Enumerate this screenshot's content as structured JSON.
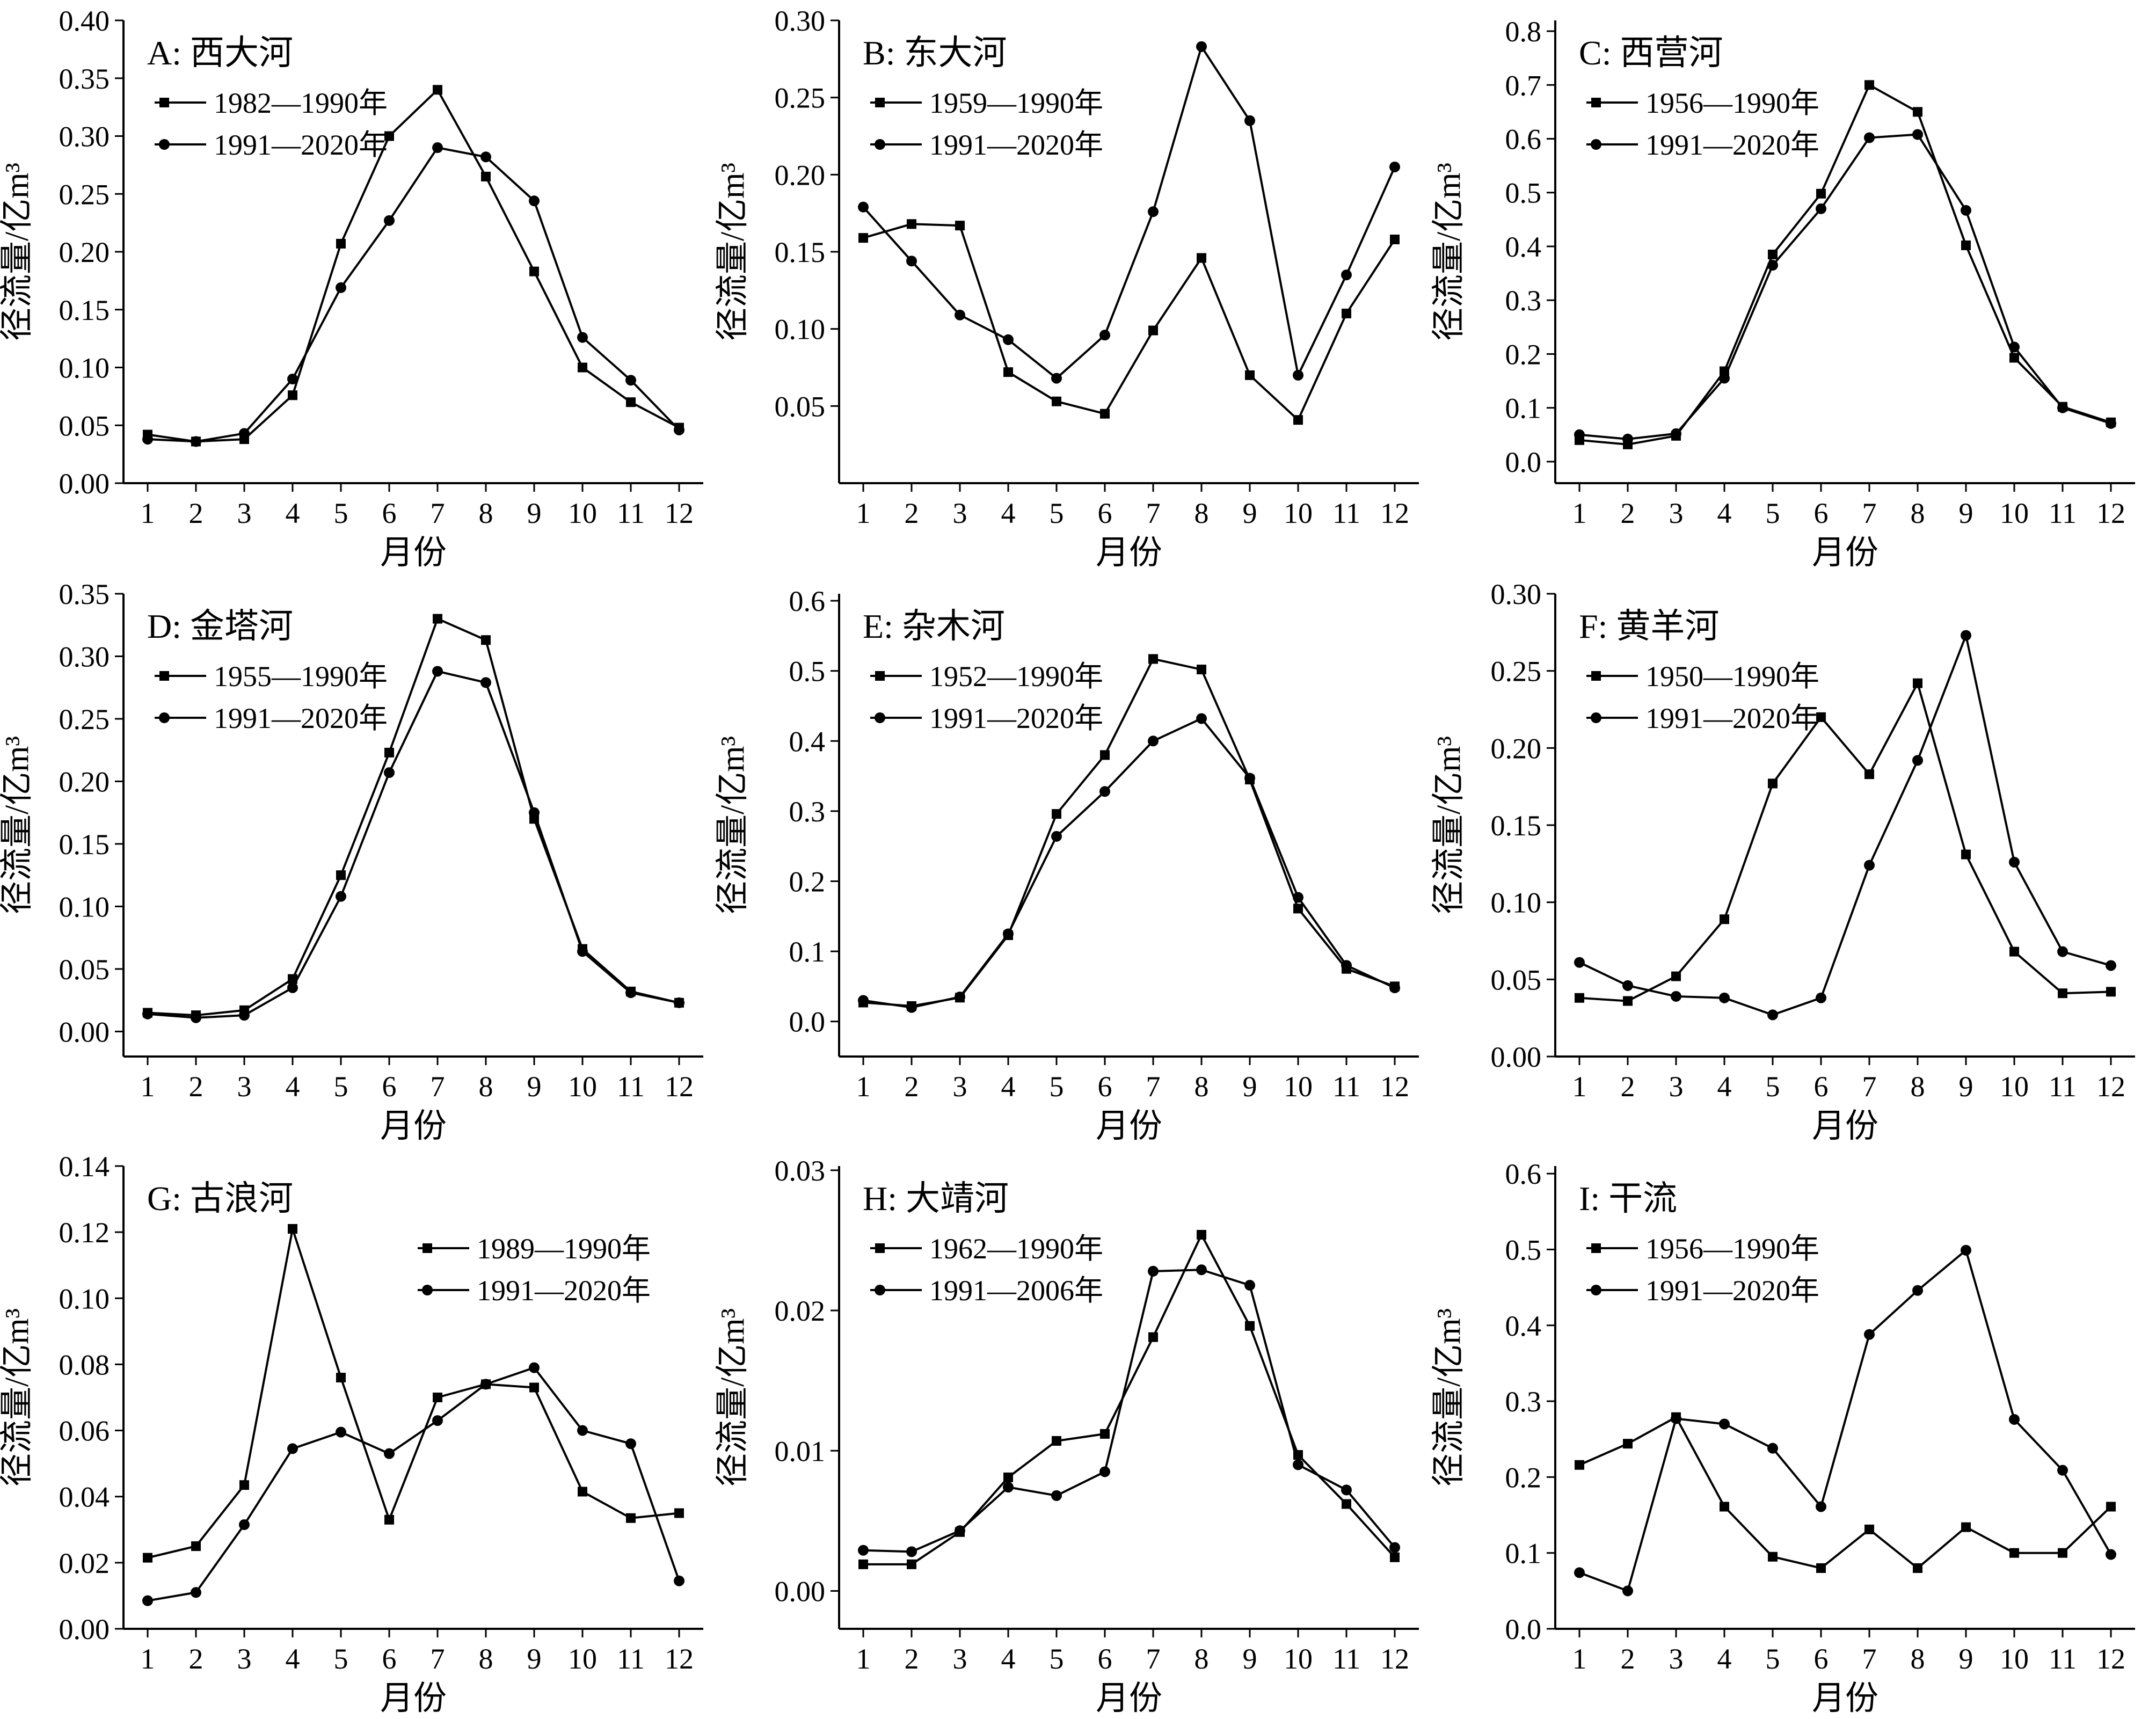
{
  "common": {
    "xlabel": "月份",
    "ylabel": "径流量/亿m³",
    "categories": [
      "1",
      "2",
      "3",
      "4",
      "5",
      "6",
      "7",
      "8",
      "9",
      "10",
      "11",
      "12"
    ],
    "line_color": "#000000"
  },
  "chart_data": [
    {
      "type": "line",
      "title": "A: 西大河",
      "xlabel": "月份",
      "ylabel": "径流量/亿m³",
      "categories": [
        "1",
        "2",
        "3",
        "4",
        "5",
        "6",
        "7",
        "8",
        "9",
        "10",
        "11",
        "12"
      ],
      "ylim": [
        0,
        0.4
      ],
      "yticks": [
        "0.00",
        "0.05",
        "0.10",
        "0.15",
        "0.20",
        "0.25",
        "0.30",
        "0.35",
        "0.40"
      ],
      "legend": "top-left",
      "series": [
        {
          "name": "1982—1990年",
          "marker": "square",
          "values": [
            0.042,
            0.036,
            0.038,
            0.076,
            0.207,
            0.3,
            0.34,
            0.265,
            0.183,
            0.1,
            0.07,
            0.048
          ]
        },
        {
          "name": "1991—2020年",
          "marker": "circle",
          "values": [
            0.038,
            0.036,
            0.043,
            0.09,
            0.169,
            0.227,
            0.29,
            0.282,
            0.244,
            0.126,
            0.089,
            0.046
          ]
        }
      ]
    },
    {
      "type": "line",
      "title": "B: 东大河",
      "xlabel": "月份",
      "ylabel": "径流量/亿m³",
      "categories": [
        "1",
        "2",
        "3",
        "4",
        "5",
        "6",
        "7",
        "8",
        "9",
        "10",
        "11",
        "12"
      ],
      "ylim": [
        0,
        0.3
      ],
      "yticks": [
        "0.05",
        "0.10",
        "0.15",
        "0.20",
        "0.25",
        "0.30"
      ],
      "legend": "top-left",
      "series": [
        {
          "name": "1959—1990年",
          "marker": "square",
          "values": [
            0.159,
            0.168,
            0.167,
            0.072,
            0.053,
            0.045,
            0.099,
            0.146,
            0.07,
            0.041,
            0.11,
            0.158
          ]
        },
        {
          "name": "1991—2020年",
          "marker": "circle",
          "values": [
            0.179,
            0.144,
            0.109,
            0.093,
            0.068,
            0.096,
            0.176,
            0.283,
            0.235,
            0.07,
            0.135,
            0.205
          ]
        }
      ]
    },
    {
      "type": "line",
      "title": "C: 西营河",
      "xlabel": "月份",
      "ylabel": "径流量/亿m³",
      "categories": [
        "1",
        "2",
        "3",
        "4",
        "5",
        "6",
        "7",
        "8",
        "9",
        "10",
        "11",
        "12"
      ],
      "ylim": [
        -0.04,
        0.82
      ],
      "yticks": [
        "0.0",
        "0.1",
        "0.2",
        "0.3",
        "0.4",
        "0.5",
        "0.6",
        "0.7",
        "0.8"
      ],
      "legend": "top-left",
      "series": [
        {
          "name": "1956—1990年",
          "marker": "square",
          "values": [
            0.04,
            0.032,
            0.048,
            0.168,
            0.385,
            0.498,
            0.7,
            0.65,
            0.402,
            0.193,
            0.102,
            0.073
          ]
        },
        {
          "name": "1991—2020年",
          "marker": "circle",
          "values": [
            0.05,
            0.042,
            0.052,
            0.155,
            0.365,
            0.47,
            0.602,
            0.608,
            0.467,
            0.213,
            0.1,
            0.071
          ]
        }
      ]
    },
    {
      "type": "line",
      "title": "D: 金塔河",
      "xlabel": "月份",
      "ylabel": "径流量/亿m³",
      "categories": [
        "1",
        "2",
        "3",
        "4",
        "5",
        "6",
        "7",
        "8",
        "9",
        "10",
        "11",
        "12"
      ],
      "ylim": [
        -0.02,
        0.35
      ],
      "yticks": [
        "0.00",
        "0.05",
        "0.10",
        "0.15",
        "0.20",
        "0.25",
        "0.30",
        "0.35"
      ],
      "legend": "top-left",
      "series": [
        {
          "name": "1955—1990年",
          "marker": "square",
          "values": [
            0.015,
            0.013,
            0.017,
            0.042,
            0.125,
            0.223,
            0.33,
            0.313,
            0.17,
            0.066,
            0.032,
            0.023
          ]
        },
        {
          "name": "1991—2020年",
          "marker": "circle",
          "values": [
            0.014,
            0.011,
            0.013,
            0.035,
            0.108,
            0.207,
            0.288,
            0.279,
            0.175,
            0.064,
            0.031,
            0.023
          ]
        }
      ]
    },
    {
      "type": "line",
      "title": "E: 杂木河",
      "xlabel": "月份",
      "ylabel": "径流量/亿m³",
      "categories": [
        "1",
        "2",
        "3",
        "4",
        "5",
        "6",
        "7",
        "8",
        "9",
        "10",
        "11",
        "12"
      ],
      "ylim": [
        -0.05,
        0.61
      ],
      "yticks": [
        "0.0",
        "0.1",
        "0.2",
        "0.3",
        "0.4",
        "0.5",
        "0.6"
      ],
      "legend": "top-left",
      "series": [
        {
          "name": "1952—1990年",
          "marker": "square",
          "values": [
            0.027,
            0.022,
            0.034,
            0.123,
            0.296,
            0.38,
            0.517,
            0.502,
            0.345,
            0.161,
            0.075,
            0.05
          ]
        },
        {
          "name": "1991—2020年",
          "marker": "circle",
          "values": [
            0.03,
            0.02,
            0.035,
            0.125,
            0.264,
            0.328,
            0.4,
            0.432,
            0.347,
            0.177,
            0.08,
            0.048
          ]
        }
      ]
    },
    {
      "type": "line",
      "title": "F: 黄羊河",
      "xlabel": "月份",
      "ylabel": "径流量/亿m³",
      "categories": [
        "1",
        "2",
        "3",
        "4",
        "5",
        "6",
        "7",
        "8",
        "9",
        "10",
        "11",
        "12"
      ],
      "ylim": [
        0,
        0.3
      ],
      "yticks": [
        "0.00",
        "0.05",
        "0.10",
        "0.15",
        "0.20",
        "0.25",
        "0.30"
      ],
      "legend": "top-left",
      "series": [
        {
          "name": "1950—1990年",
          "marker": "square",
          "values": [
            0.038,
            0.036,
            0.052,
            0.089,
            0.177,
            0.22,
            0.183,
            0.242,
            0.131,
            0.068,
            0.041,
            0.042
          ]
        },
        {
          "name": "1991—2020年",
          "marker": "circle",
          "values": [
            0.061,
            0.046,
            0.039,
            0.038,
            0.027,
            0.038,
            0.124,
            0.192,
            0.273,
            0.126,
            0.068,
            0.059
          ]
        }
      ]
    },
    {
      "type": "line",
      "title": "G: 古浪河",
      "xlabel": "月份",
      "ylabel": "径流量/亿m³",
      "categories": [
        "1",
        "2",
        "3",
        "4",
        "5",
        "6",
        "7",
        "8",
        "9",
        "10",
        "11",
        "12"
      ],
      "ylim": [
        0,
        0.14
      ],
      "yticks": [
        "0.00",
        "0.02",
        "0.04",
        "0.06",
        "0.08",
        "0.10",
        "0.12",
        "0.14"
      ],
      "legend": "top-right",
      "series": [
        {
          "name": "1989—1990年",
          "marker": "square",
          "values": [
            0.0215,
            0.025,
            0.0435,
            0.121,
            0.076,
            0.033,
            0.07,
            0.074,
            0.073,
            0.0415,
            0.0335,
            0.035
          ]
        },
        {
          "name": "1991—2020年",
          "marker": "circle",
          "values": [
            0.0085,
            0.011,
            0.0315,
            0.0545,
            0.0595,
            0.053,
            0.063,
            0.074,
            0.079,
            0.06,
            0.056,
            0.0145
          ]
        }
      ]
    },
    {
      "type": "line",
      "title": "H: 大靖河",
      "xlabel": "月份",
      "ylabel": "径流量/亿m³",
      "categories": [
        "1",
        "2",
        "3",
        "4",
        "5",
        "6",
        "7",
        "8",
        "9",
        "10",
        "11",
        "12"
      ],
      "ylim": [
        -0.0027,
        0.0303
      ],
      "yticks": [
        "0.00",
        "0.01",
        "0.02",
        "0.03"
      ],
      "legend": "top-left",
      "series": [
        {
          "name": "1962—1990年",
          "marker": "square",
          "values": [
            0.0019,
            0.0019,
            0.0042,
            0.0081,
            0.0107,
            0.0112,
            0.0181,
            0.0254,
            0.0189,
            0.0097,
            0.0062,
            0.0024
          ]
        },
        {
          "name": "1991—2006年",
          "marker": "circle",
          "values": [
            0.0029,
            0.0028,
            0.0043,
            0.0074,
            0.0068,
            0.0085,
            0.0228,
            0.0229,
            0.0218,
            0.009,
            0.0072,
            0.0031
          ]
        }
      ]
    },
    {
      "type": "line",
      "title": "I: 干流",
      "xlabel": "月份",
      "ylabel": "径流量/亿m³",
      "categories": [
        "1",
        "2",
        "3",
        "4",
        "5",
        "6",
        "7",
        "8",
        "9",
        "10",
        "11",
        "12"
      ],
      "ylim": [
        0,
        0.61
      ],
      "yticks": [
        "0.0",
        "0.1",
        "0.2",
        "0.3",
        "0.4",
        "0.5",
        "0.6"
      ],
      "legend": "top-left",
      "series": [
        {
          "name": "1956—1990年",
          "marker": "square",
          "values": [
            0.216,
            0.244,
            0.279,
            0.161,
            0.095,
            0.08,
            0.131,
            0.08,
            0.134,
            0.1,
            0.1,
            0.161
          ]
        },
        {
          "name": "1991—2020年",
          "marker": "circle",
          "values": [
            0.074,
            0.05,
            0.277,
            0.27,
            0.238,
            0.161,
            0.388,
            0.446,
            0.499,
            0.276,
            0.209,
            0.098
          ]
        }
      ]
    }
  ]
}
